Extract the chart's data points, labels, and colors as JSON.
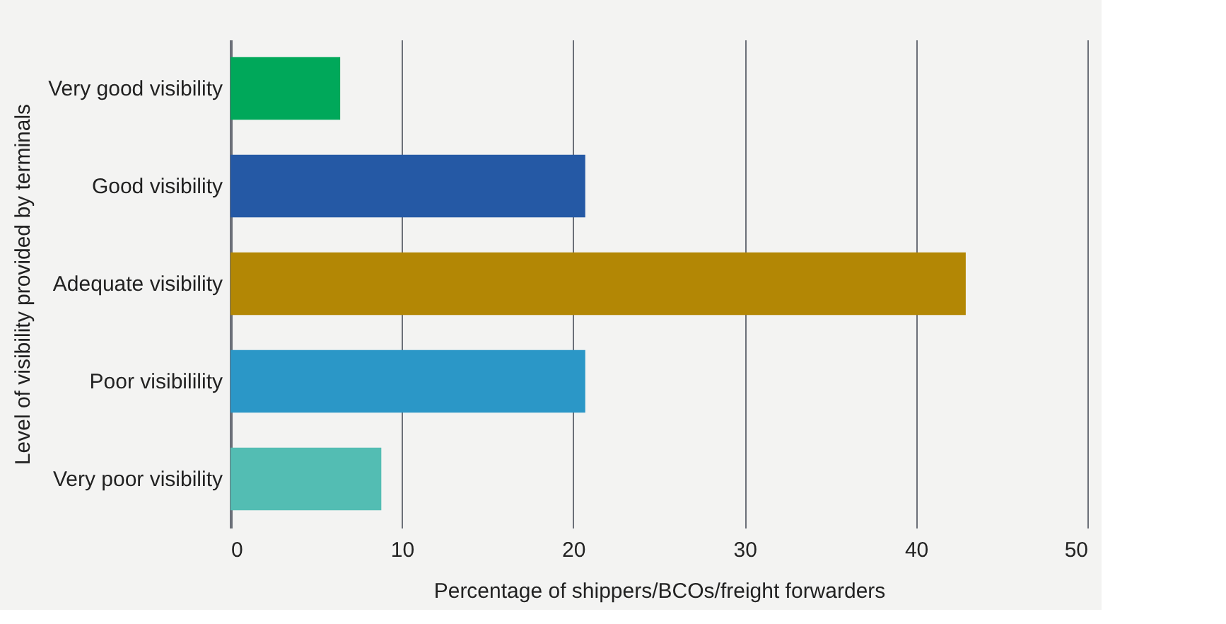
{
  "chart_data": {
    "type": "bar",
    "orientation": "horizontal",
    "xlabel": "Percentage of shippers/BCOs/freight forwarders",
    "ylabel": "Level of visibility provided by terminals",
    "categories": [
      "Very good visibility",
      "Good visibility",
      "Adequate visibility",
      "Poor visibilility",
      "Very poor visibility"
    ],
    "values": [
      6.4,
      20.7,
      42.9,
      20.7,
      8.8
    ],
    "colors": [
      "#00a85a",
      "#2559a5",
      "#b38705",
      "#2b97c7",
      "#53bdb3"
    ],
    "xlim": [
      0,
      50
    ],
    "xticks": [
      0,
      10,
      20,
      30,
      40,
      50
    ],
    "grid": "x"
  }
}
